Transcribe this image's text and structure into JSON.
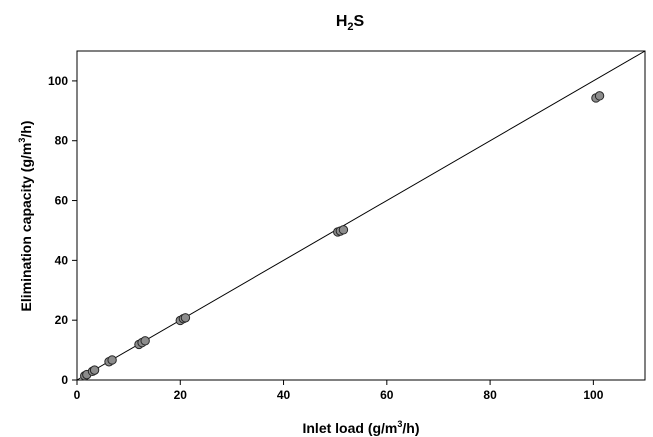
{
  "chart_data": {
    "type": "scatter",
    "title": {
      "base": "H",
      "sub": "2",
      "tail": "S"
    },
    "xlabel": {
      "pre": "Inlet load (g/m",
      "sup": "3",
      "post": "/h)"
    },
    "ylabel": {
      "pre": "Elimination capacity (g/m",
      "sup": "3",
      "post": "/h)"
    },
    "xlim": [
      0,
      110
    ],
    "ylim": [
      0,
      110
    ],
    "xticks": [
      0,
      20,
      40,
      60,
      80,
      100
    ],
    "yticks": [
      0,
      20,
      40,
      60,
      80,
      100
    ],
    "grid": false,
    "reference_line": {
      "from": [
        0,
        0
      ],
      "to": [
        110,
        110
      ]
    },
    "series": [
      {
        "points": [
          {
            "x": 1.5,
            "y": 1.4
          },
          {
            "x": 1.9,
            "y": 1.8
          },
          {
            "x": 3.0,
            "y": 2.9
          },
          {
            "x": 3.4,
            "y": 3.3
          },
          {
            "x": 6.2,
            "y": 6.1
          },
          {
            "x": 6.8,
            "y": 6.7
          },
          {
            "x": 12.0,
            "y": 11.9
          },
          {
            "x": 12.6,
            "y": 12.5
          },
          {
            "x": 13.2,
            "y": 13.1
          },
          {
            "x": 20.0,
            "y": 19.9
          },
          {
            "x": 20.6,
            "y": 20.5
          },
          {
            "x": 21.0,
            "y": 20.8
          },
          {
            "x": 50.5,
            "y": 49.5
          },
          {
            "x": 51.0,
            "y": 49.8
          },
          {
            "x": 51.6,
            "y": 50.2
          },
          {
            "x": 100.5,
            "y": 94.3
          },
          {
            "x": 101.2,
            "y": 95.0
          }
        ]
      }
    ],
    "colors": {
      "marker_fill": "#8c8c8c",
      "marker_stroke": "#262626",
      "line": "#000000",
      "axis": "#000000"
    }
  }
}
